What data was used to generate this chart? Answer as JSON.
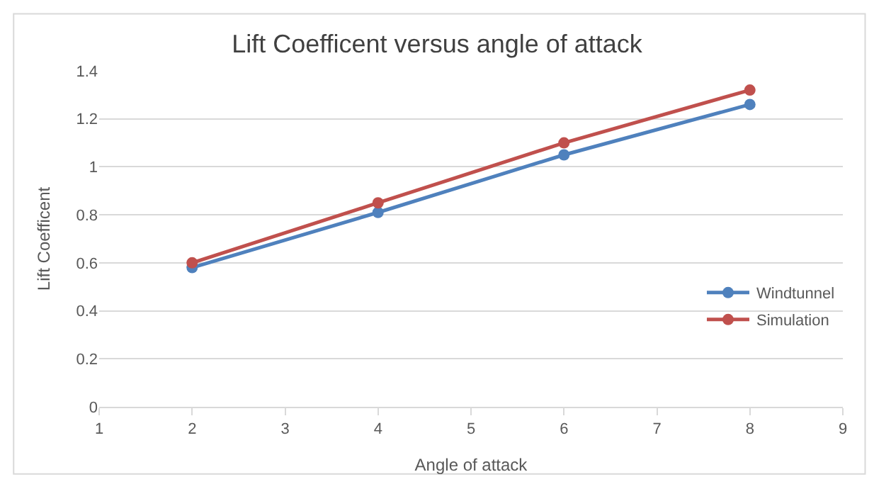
{
  "chart_data": {
    "type": "line",
    "title": "Lift Coefficent versus angle of attack",
    "xlabel": "Angle of attack",
    "ylabel": "Lift Coefficent",
    "x": [
      2,
      4,
      6,
      8
    ],
    "series": [
      {
        "name": "Windtunnel",
        "color": "#4f81bd",
        "values": [
          0.58,
          0.81,
          1.05,
          1.26
        ]
      },
      {
        "name": "Simulation",
        "color": "#c0504d",
        "values": [
          0.6,
          0.85,
          1.1,
          1.32
        ]
      }
    ],
    "xlim": [
      1,
      9
    ],
    "xticks": [
      1,
      2,
      3,
      4,
      5,
      6,
      7,
      8,
      9
    ],
    "ylim": [
      0,
      1.4
    ],
    "yticks": [
      0,
      0.2,
      0.4,
      0.6,
      0.8,
      1,
      1.2,
      1.4
    ],
    "grid": "y",
    "legend": "right",
    "marker": "circle",
    "line_style": "solid"
  }
}
